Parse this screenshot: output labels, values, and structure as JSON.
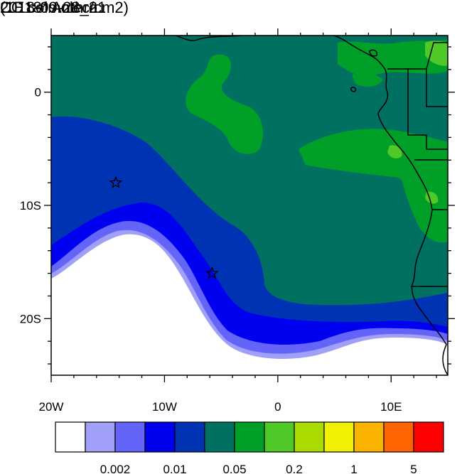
{
  "header": {
    "title": "CO col Anthro",
    "units": "(1E18*molec/cm2)",
    "timestamp": "2018-09-28_21"
  },
  "map": {
    "lon_range": [
      -20,
      15
    ],
    "lat_range": [
      -25,
      5
    ],
    "x_ticks": [
      {
        "value": -20,
        "label": "20W"
      },
      {
        "value": -10,
        "label": "10W"
      },
      {
        "value": 0,
        "label": "0"
      },
      {
        "value": 10,
        "label": "10E"
      }
    ],
    "y_ticks": [
      {
        "value": 0,
        "label": "0"
      },
      {
        "value": -10,
        "label": "10S"
      },
      {
        "value": -20,
        "label": "20S"
      }
    ],
    "markers": [
      {
        "lon": -14.3,
        "lat": -8.0
      },
      {
        "lon": -5.8,
        "lat": -16.0
      }
    ]
  },
  "colorbar": {
    "colors": [
      "#ffffff",
      "#a0a0f8",
      "#6464f8",
      "#0000f0",
      "#0032b4",
      "#007060",
      "#00a028",
      "#50c828",
      "#aadc00",
      "#f0f000",
      "#fab400",
      "#ff6400",
      "#ff0000"
    ],
    "labels": [
      {
        "boundary": 2,
        "text": "0.002"
      },
      {
        "boundary": 4,
        "text": "0.01"
      },
      {
        "boundary": 6,
        "text": "0.05"
      },
      {
        "boundary": 8,
        "text": "0.2"
      },
      {
        "boundary": 10,
        "text": "1"
      },
      {
        "boundary": 12,
        "text": "5"
      }
    ]
  }
}
